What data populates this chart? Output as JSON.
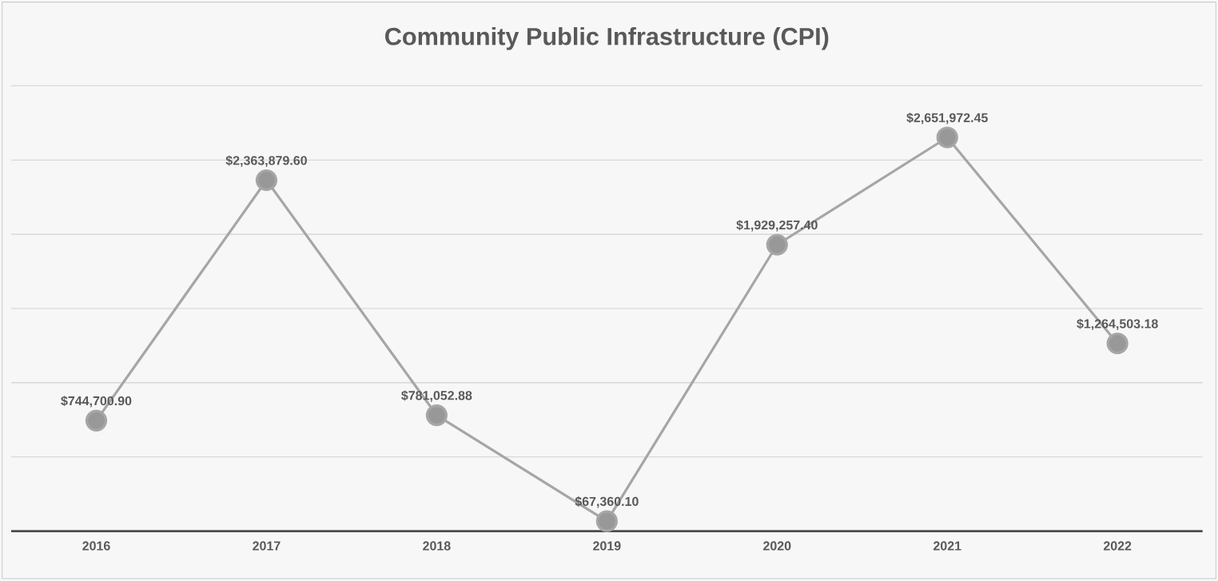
{
  "chart_data": {
    "type": "line",
    "title": "Community Public Infrastructure (CPI)",
    "categories": [
      "2016",
      "2017",
      "2018",
      "2019",
      "2020",
      "2021",
      "2022"
    ],
    "series": [
      {
        "color": "#a6a6a6",
        "values": [
          744700.9,
          2363879.6,
          781052.88,
          67360.1,
          1929257.4,
          2651972.45,
          1264503.18
        ],
        "value_labels": [
          "$744,700.90",
          "$2,363,879.60",
          "$781,052.88",
          "$67,360.10",
          "$1,929,257.40",
          "$2,651,972.45",
          "$1,264,503.18"
        ]
      }
    ],
    "ylim": [
      0,
      3000000
    ],
    "yticks": [
      {
        "value": 0,
        "label": null
      },
      {
        "value": 500000,
        "label": null
      },
      {
        "value": 1000000,
        "label": null
      },
      {
        "value": 1500000,
        "label": null
      },
      {
        "value": 2000000,
        "label": null
      },
      {
        "value": 2500000,
        "label": null
      },
      {
        "value": 3000000,
        "label": null
      }
    ],
    "tick_labels": "x",
    "grid": "y",
    "legend": false,
    "marker": "circle",
    "line_style": "solid"
  }
}
